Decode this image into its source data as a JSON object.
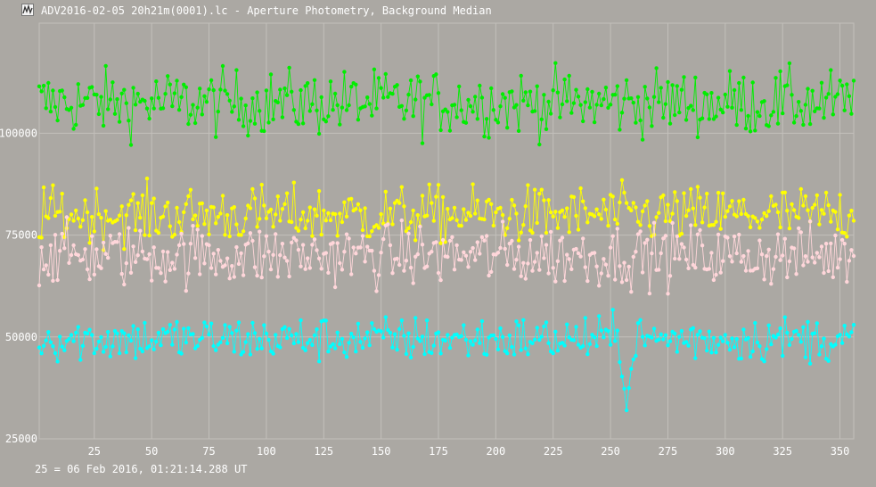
{
  "window": {
    "title": "ADV2016-02-05 20h21m(0001).lc - Aperture Photometry, Background Median",
    "icon": "lightcurve-app-icon"
  },
  "footer": {
    "timestamp_note": "25 = 06 Feb 2016, 01:21:14.288 UT"
  },
  "colors": {
    "background": "#aba8a3",
    "grid": "#c3c0bb",
    "text": "#ffffff"
  },
  "chart_data": {
    "type": "line",
    "title": "",
    "xlabel": "",
    "ylabel": "",
    "xlim": [
      1,
      356
    ],
    "ylim": [
      25000,
      127000
    ],
    "x_ticks": [
      25,
      50,
      75,
      100,
      125,
      150,
      175,
      200,
      225,
      250,
      275,
      300,
      325,
      350
    ],
    "y_ticks": [
      25000,
      50000,
      75000,
      100000
    ],
    "grid": true,
    "legend": "none",
    "series": [
      {
        "color": "#00ee00",
        "approx_mean": 107500,
        "approx_noise": 4000,
        "x": [
          1,
          356
        ]
      },
      {
        "color": "#ffff00",
        "approx_mean": 80000,
        "approx_noise": 3500,
        "x": [
          1,
          356
        ]
      },
      {
        "color": "#ffd6da",
        "approx_mean": 70000,
        "approx_noise": 3800,
        "x": [
          1,
          356
        ]
      },
      {
        "color": "#00ffff",
        "approx_mean": 49500,
        "approx_noise": 2800,
        "x": [
          1,
          356
        ],
        "notable_dip": {
          "x_start": 254,
          "x_end": 260,
          "min_value": 33000
        }
      }
    ]
  }
}
